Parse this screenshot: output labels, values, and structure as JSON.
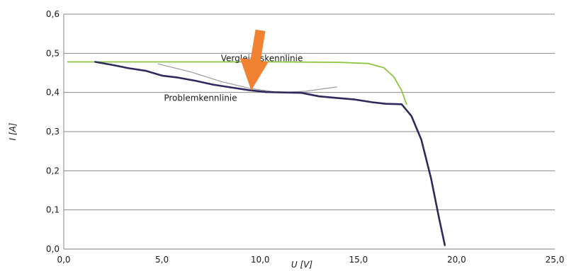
{
  "chart_data": {
    "type": "line",
    "title": "",
    "xlabel": "U [V]",
    "ylabel": "I [A]",
    "xlim": [
      0,
      25
    ],
    "ylim": [
      0,
      0.6
    ],
    "x_ticks": [
      "0,0",
      "5,0",
      "10,0",
      "15,0",
      "20,0",
      "25,0"
    ],
    "y_ticks": [
      "0,0",
      "0,1",
      "0,2",
      "0,3",
      "0,4",
      "0,5",
      "0,6"
    ],
    "grid": "horizontal",
    "legend": "none",
    "series": [
      {
        "name": "Vergleichskennlinie",
        "color": "#8cc63e",
        "points": [
          [
            0.2,
            0.478
          ],
          [
            3,
            0.478
          ],
          [
            7,
            0.478
          ],
          [
            11,
            0.478
          ],
          [
            14,
            0.477
          ],
          [
            15.5,
            0.474
          ],
          [
            16.3,
            0.463
          ],
          [
            16.8,
            0.44
          ],
          [
            17.2,
            0.405
          ],
          [
            17.45,
            0.37
          ]
        ]
      },
      {
        "name": "Problemkennlinie",
        "color": "#2e2a5e",
        "points": [
          [
            1.6,
            0.478
          ],
          [
            2.5,
            0.47
          ],
          [
            3.3,
            0.462
          ],
          [
            4.2,
            0.455
          ],
          [
            5,
            0.443
          ],
          [
            5.8,
            0.438
          ],
          [
            6.7,
            0.43
          ],
          [
            7.6,
            0.42
          ],
          [
            8.5,
            0.413
          ],
          [
            9.4,
            0.406
          ],
          [
            10.3,
            0.401
          ],
          [
            11.2,
            0.4
          ],
          [
            12.1,
            0.399
          ],
          [
            13,
            0.39
          ],
          [
            13.9,
            0.386
          ],
          [
            14.8,
            0.382
          ],
          [
            15.7,
            0.375
          ],
          [
            16.4,
            0.371
          ],
          [
            17.2,
            0.37
          ],
          [
            17.7,
            0.34
          ],
          [
            18.2,
            0.28
          ],
          [
            18.7,
            0.18
          ],
          [
            19.1,
            0.08
          ],
          [
            19.4,
            0.01
          ]
        ]
      },
      {
        "name": "",
        "color": "#9a9a9a",
        "points": [
          [
            4.8,
            0.473
          ],
          [
            6.5,
            0.452
          ],
          [
            8,
            0.428
          ],
          [
            9.5,
            0.41
          ],
          [
            11,
            0.4
          ],
          [
            12.3,
            0.403
          ],
          [
            13.3,
            0.41
          ],
          [
            13.9,
            0.414
          ]
        ]
      }
    ],
    "annotations": [
      {
        "text": "Vergleichskennlinie",
        "x": 8.0,
        "y": 0.487
      },
      {
        "text": "Problemkennlinie",
        "x": 5.1,
        "y": 0.4
      },
      {
        "text": "",
        "type": "arrow",
        "color": "#f08232",
        "x": 9.4,
        "y": 0.405
      }
    ]
  }
}
